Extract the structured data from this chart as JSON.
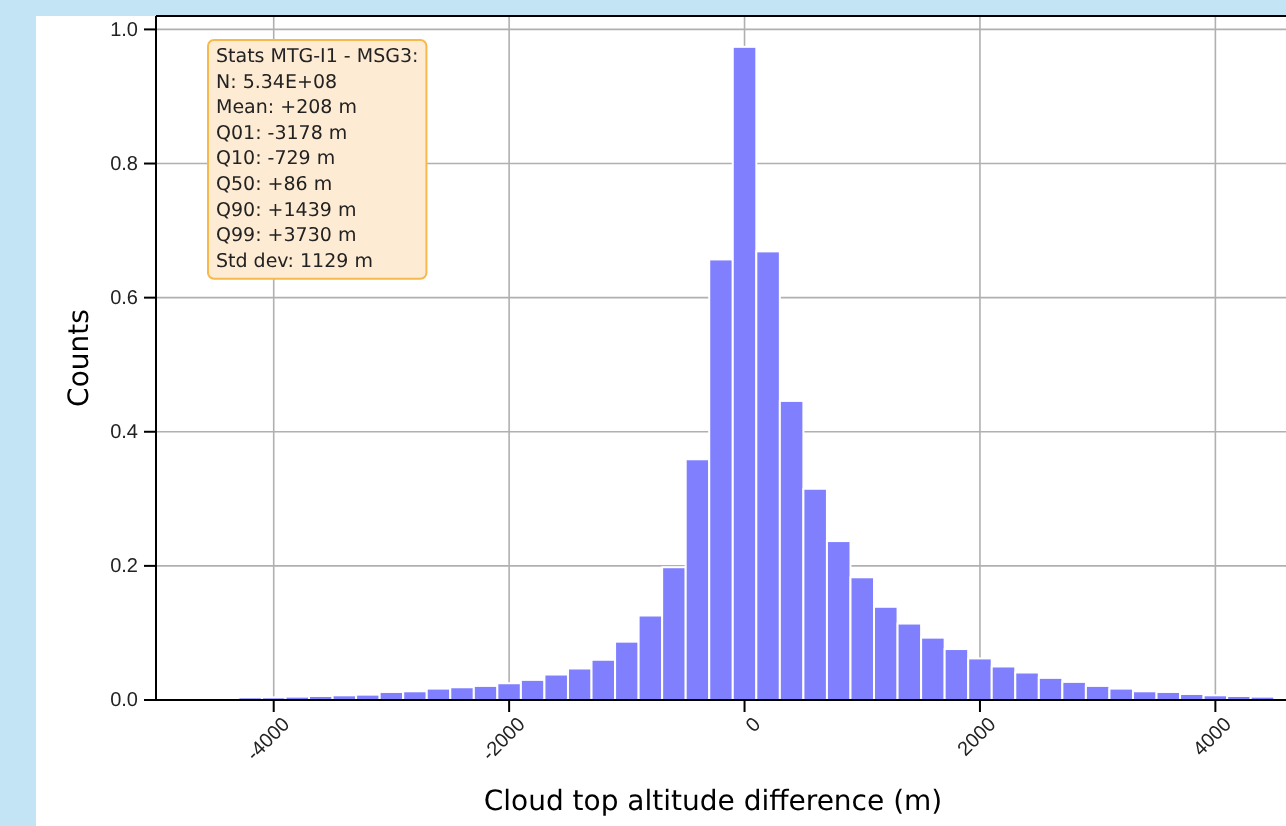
{
  "chart_data": {
    "type": "histogram",
    "xlabel": "Cloud top altitude difference (m)",
    "ylabel": "Counts",
    "bins": [
      -4900,
      -4700,
      -4500,
      -4300,
      -4100,
      -3900,
      -3700,
      -3500,
      -3300,
      -3100,
      -2900,
      -2700,
      -2500,
      -2300,
      -2100,
      -1900,
      -1700,
      -1500,
      -1300,
      -1100,
      -900,
      -700,
      -500,
      -300,
      -100,
      100,
      300,
      500,
      700,
      900,
      1100,
      1300,
      1500,
      1700,
      1900,
      2100,
      2300,
      2500,
      2700,
      2900,
      3100,
      3300,
      3500,
      3700,
      3900,
      4100,
      4300,
      4500
    ],
    "values": [
      0.002,
      0.003,
      0.003,
      0.004,
      0.004,
      0.005,
      0.006,
      0.007,
      0.008,
      0.012,
      0.013,
      0.017,
      0.019,
      0.021,
      0.025,
      0.03,
      0.038,
      0.047,
      0.06,
      0.087,
      0.126,
      0.198,
      0.359,
      0.657,
      0.974,
      0.669,
      0.446,
      0.315,
      0.237,
      0.183,
      0.139,
      0.114,
      0.093,
      0.076,
      0.062,
      0.05,
      0.041,
      0.033,
      0.027,
      0.021,
      0.017,
      0.013,
      0.012,
      0.009,
      0.007,
      0.006,
      0.005
    ],
    "color": "#8080ff",
    "xlim": [
      -5000,
      4600
    ],
    "xticks": [
      -4000,
      -2000,
      0,
      2000,
      4000
    ],
    "ylim": [
      0,
      1.02
    ],
    "yticks": [
      {
        "value": 0,
        "label": "0.0"
      },
      {
        "value": 0.2,
        "label": "0.2"
      },
      {
        "value": 0.4,
        "label": "0.4"
      },
      {
        "value": 0.6,
        "label": "0.6"
      },
      {
        "value": 0.8,
        "label": "0.8"
      },
      {
        "value": 1.0,
        "label": "1.0"
      }
    ],
    "grid": true,
    "annotations": [
      "Stats MTG-I1 - MSG3:\nN: 5.34E+08\nMean: +208 m\nQ01: -3178 m\nQ10: -729 m\nQ50: +86 m\nQ90: +1439 m\nQ99: +3730 m\nStd dev: 1129 m"
    ]
  }
}
